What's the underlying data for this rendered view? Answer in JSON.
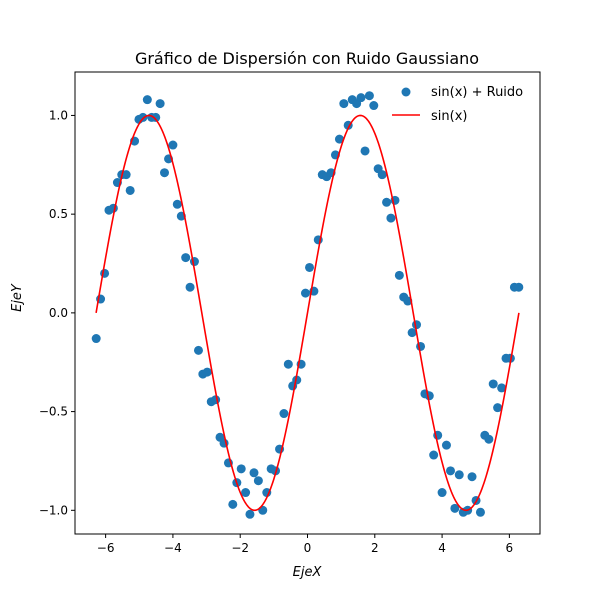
{
  "chart_data": {
    "type": "scatter",
    "title": "Gráfico de Dispersión con Ruido Gaussiano",
    "xlabel": "EjeX",
    "ylabel": "EjeY",
    "xlim": [
      -6.91,
      6.91
    ],
    "ylim": [
      -1.12,
      1.22
    ],
    "xticks": [
      -6,
      -4,
      -2,
      0,
      2,
      4,
      6
    ],
    "xtick_labels": [
      "−6",
      "−4",
      "−2",
      "0",
      "2",
      "4",
      "6"
    ],
    "yticks": [
      -1.0,
      -0.5,
      0.0,
      0.5,
      1.0
    ],
    "ytick_labels": [
      "−1.0",
      "−0.5",
      "0.0",
      "0.5",
      "1.0"
    ],
    "grid": false,
    "legend_position": "top-right",
    "series": [
      {
        "name": "sin(x) + Ruido",
        "kind": "scatter",
        "color": "#1f77b4",
        "x": [
          -6.28,
          -6.15,
          -6.03,
          -5.9,
          -5.77,
          -5.65,
          -5.52,
          -5.39,
          -5.27,
          -5.14,
          -5.01,
          -4.89,
          -4.76,
          -4.63,
          -4.51,
          -4.38,
          -4.25,
          -4.13,
          -4.0,
          -3.87,
          -3.75,
          -3.62,
          -3.49,
          -3.36,
          -3.24,
          -3.11,
          -2.98,
          -2.86,
          -2.73,
          -2.6,
          -2.48,
          -2.35,
          -2.22,
          -2.1,
          -1.97,
          -1.84,
          -1.71,
          -1.59,
          -1.46,
          -1.33,
          -1.21,
          -1.08,
          -0.95,
          -0.83,
          -0.7,
          -0.57,
          -0.44,
          -0.32,
          -0.19,
          -0.06,
          0.06,
          0.19,
          0.32,
          0.44,
          0.57,
          0.7,
          0.83,
          0.95,
          1.08,
          1.21,
          1.33,
          1.46,
          1.59,
          1.71,
          1.84,
          1.97,
          2.1,
          2.22,
          2.35,
          2.48,
          2.6,
          2.73,
          2.86,
          2.98,
          3.11,
          3.24,
          3.36,
          3.49,
          3.62,
          3.75,
          3.87,
          4.0,
          4.13,
          4.25,
          4.38,
          4.51,
          4.63,
          4.76,
          4.89,
          5.01,
          5.14,
          5.27,
          5.39,
          5.52,
          5.65,
          5.77,
          5.9,
          6.03,
          6.15,
          6.28
        ],
        "y": [
          -0.13,
          0.07,
          0.2,
          0.52,
          0.53,
          0.66,
          0.7,
          0.7,
          0.62,
          0.87,
          0.98,
          0.99,
          1.08,
          0.99,
          0.99,
          1.06,
          0.71,
          0.78,
          0.85,
          0.55,
          0.49,
          0.28,
          0.13,
          0.26,
          -0.19,
          -0.31,
          -0.3,
          -0.45,
          -0.44,
          -0.63,
          -0.66,
          -0.76,
          -0.97,
          -0.86,
          -0.79,
          -0.91,
          -1.02,
          -0.81,
          -0.85,
          -1.0,
          -0.91,
          -0.79,
          -0.8,
          -0.69,
          -0.51,
          -0.26,
          -0.37,
          -0.34,
          -0.26,
          0.1,
          0.23,
          0.11,
          0.37,
          0.7,
          0.69,
          0.71,
          0.8,
          0.88,
          1.06,
          0.95,
          1.08,
          1.06,
          1.09,
          0.82,
          1.1,
          1.05,
          0.73,
          0.7,
          0.56,
          0.48,
          0.57,
          0.19,
          0.08,
          0.06,
          -0.1,
          -0.06,
          -0.17,
          -0.41,
          -0.42,
          -0.72,
          -0.62,
          -0.91,
          -0.67,
          -0.8,
          -0.99,
          -0.82,
          -1.01,
          -1.0,
          -0.83,
          -0.95,
          -1.01,
          -0.62,
          -0.64,
          -0.36,
          -0.48,
          -0.38,
          -0.23,
          -0.23,
          0.13,
          0.13
        ]
      },
      {
        "name": "sin(x)",
        "kind": "line",
        "color": "#ff0000",
        "x_range": [
          -6.283,
          6.283
        ],
        "function": "sin"
      }
    ]
  }
}
